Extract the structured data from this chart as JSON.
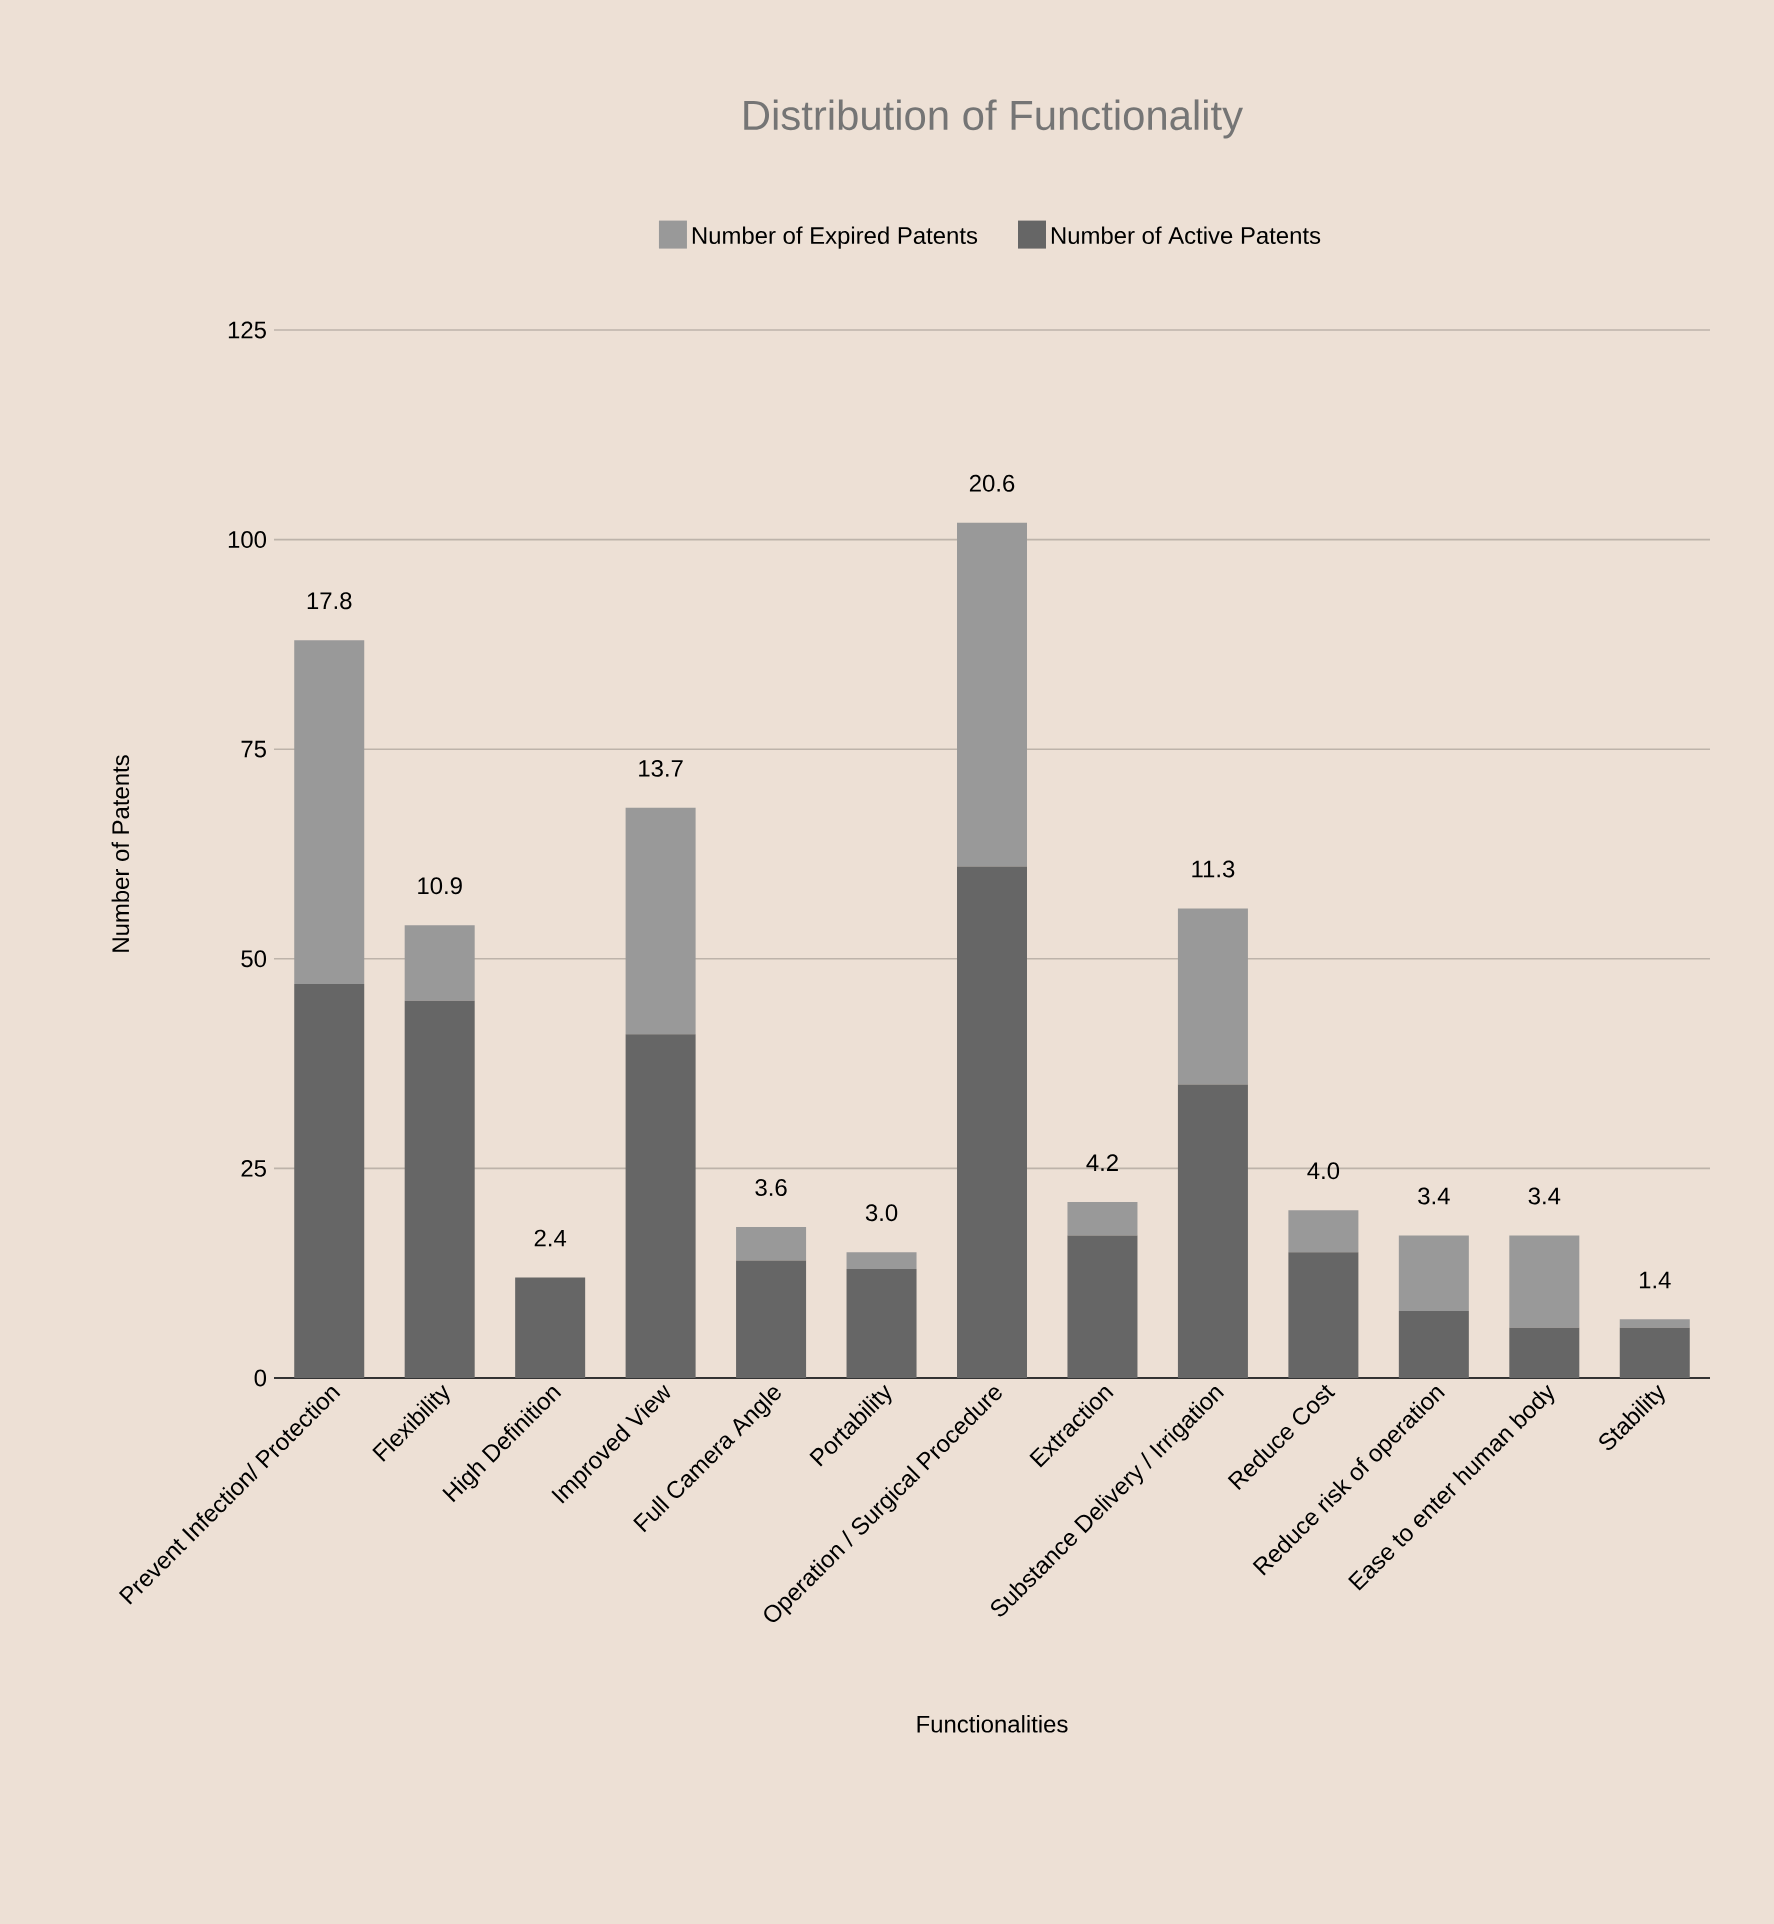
{
  "chart_data": {
    "type": "bar",
    "title": "Distribution of Functionality",
    "xlabel": "Functionalities",
    "ylabel": "Number of Patents",
    "categories": [
      "Prevent Infection/ Protection",
      "Flexibility",
      "High Definition",
      "Improved View",
      "Full Camera Angle",
      "Portability",
      "Operation / Surgical Procedure",
      "Extraction",
      "Substance Delivery / Irrigation",
      "Reduce Cost",
      "Reduce risk of operation",
      "Ease to enter human body",
      "Stability"
    ],
    "series": [
      {
        "name": "Number of Active Patents",
        "color": "#666666",
        "values": [
          47,
          45,
          12,
          41,
          14,
          13,
          61,
          17,
          35,
          15,
          8,
          6,
          6
        ]
      },
      {
        "name": "Number of Expired Patents",
        "color": "#999999",
        "values": [
          41,
          9,
          0,
          27,
          4,
          2,
          41,
          4,
          21,
          5,
          9,
          11,
          1
        ]
      }
    ],
    "stacked": true,
    "annotations": [
      {
        "text": "17.8",
        "x": "Prevent Infection/ Protection",
        "y": 88
      },
      {
        "text": "10.9",
        "x": "Flexibility",
        "y": 54
      },
      {
        "text": "2.4",
        "x": "High Definition",
        "y": 12
      },
      {
        "text": "13.7",
        "x": "Improved View",
        "y": 68
      },
      {
        "text": "3.6",
        "x": "Full Camera Angle",
        "y": 18
      },
      {
        "text": "3.0",
        "x": "Portability",
        "y": 15
      },
      {
        "text": "20.6",
        "x": "Operation / Surgical Procedure",
        "y": 102
      },
      {
        "text": "4.2",
        "x": "Extraction",
        "y": 21
      },
      {
        "text": "11.3",
        "x": "Substance Delivery / Irrigation",
        "y": 56
      },
      {
        "text": "4.0",
        "x": "Reduce Cost",
        "y": 20
      },
      {
        "text": "3.4",
        "x": "Reduce risk of operation",
        "y": 17
      },
      {
        "text": "3.4",
        "x": "Ease to enter human body",
        "y": 17
      },
      {
        "text": "1.4",
        "x": "Stability",
        "y": 7
      }
    ],
    "ylim": [
      0,
      125
    ],
    "yticks": [
      0,
      25,
      50,
      75,
      100,
      125
    ],
    "grid": "y",
    "legend": "top"
  }
}
